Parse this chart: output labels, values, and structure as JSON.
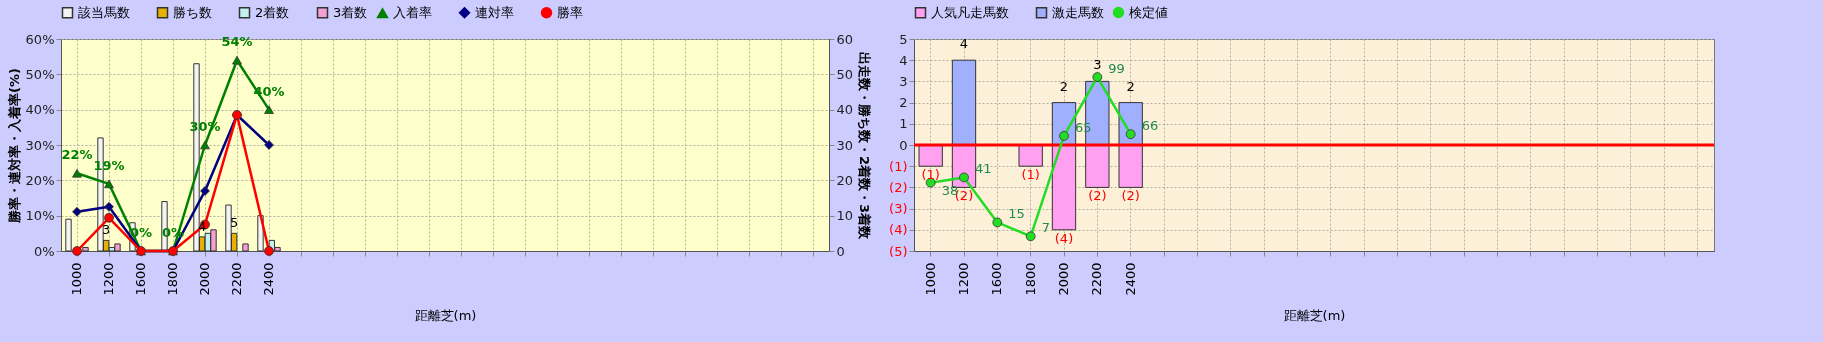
{
  "chart_data": [
    {
      "type": "bar",
      "categories": [
        "1000",
        "1200",
        "1600",
        "1800",
        "2000",
        "2200",
        "2400",
        null,
        null,
        null,
        null,
        null,
        null,
        null,
        null,
        null,
        null,
        null,
        null,
        null,
        null,
        null,
        null,
        null
      ],
      "xlabel": "距離芝(m)",
      "ylabel": "勝率・連対率・入着率(%)",
      "y2label": "出走数・勝ち数・2着数・3着数",
      "ylim": [
        0,
        60
      ],
      "yticks": [
        {
          "value": 0,
          "label": "0%"
        },
        {
          "value": 10,
          "label": "10%"
        },
        {
          "value": 20,
          "label": "20%"
        },
        {
          "value": 30,
          "label": "30%"
        },
        {
          "value": 40,
          "label": "40%"
        },
        {
          "value": 50,
          "label": "50%"
        },
        {
          "value": 60,
          "label": "60%"
        }
      ],
      "y2lim": [
        0,
        60
      ],
      "y2ticks": [
        0,
        10,
        20,
        30,
        40,
        50,
        60
      ],
      "grid": true,
      "legend": "top",
      "series": [
        {
          "name": "該当馬数",
          "color": "#f4f4f4",
          "axis": "y2",
          "values": [
            9,
            32,
            8,
            14,
            53,
            13,
            10,
            null,
            null,
            null,
            null,
            null,
            null,
            null,
            null,
            null,
            null,
            null,
            null,
            null,
            null,
            null,
            null,
            null
          ]
        },
        {
          "name": "勝ち数",
          "color": "#e8b000",
          "axis": "y2",
          "values": [
            0,
            3,
            0,
            0,
            4,
            5,
            0,
            null,
            null,
            null,
            null,
            null,
            null,
            null,
            null,
            null,
            null,
            null,
            null,
            null,
            null,
            null,
            null,
            null
          ],
          "value_labels": [
            null,
            "3",
            null,
            null,
            "4",
            "5",
            null,
            null,
            null,
            null,
            null,
            null,
            null,
            null,
            null,
            null,
            null,
            null,
            null,
            null,
            null,
            null,
            null,
            null
          ]
        },
        {
          "name": "2着数",
          "color": "#c4f0f0",
          "axis": "y2",
          "values": [
            0,
            1,
            0,
            0,
            5,
            0,
            3,
            null,
            null,
            null,
            null,
            null,
            null,
            null,
            null,
            null,
            null,
            null,
            null,
            null,
            null,
            null,
            null,
            null
          ]
        },
        {
          "name": "3着数",
          "color": "#f4a0d4",
          "axis": "y2",
          "values": [
            1,
            2,
            0,
            0,
            6,
            2,
            1,
            null,
            null,
            null,
            null,
            null,
            null,
            null,
            null,
            null,
            null,
            null,
            null,
            null,
            null,
            null,
            null,
            null
          ]
        },
        {
          "name": "入着率",
          "type": "line",
          "color": "#008000",
          "marker": "triangle",
          "values": [
            22,
            19,
            0,
            0,
            30,
            54,
            40,
            null,
            null,
            null,
            null,
            null,
            null,
            null,
            null,
            null,
            null,
            null,
            null,
            null,
            null,
            null,
            null,
            null
          ],
          "value_labels": [
            "22%",
            "19%",
            "0%",
            "0%",
            "30%",
            "54%",
            "40%",
            null,
            null,
            null,
            null,
            null,
            null,
            null,
            null,
            null,
            null,
            null,
            null,
            null,
            null,
            null,
            null,
            null
          ]
        },
        {
          "name": "連対率",
          "type": "line",
          "color": "#000080",
          "marker": "diamond",
          "values": [
            11.1,
            12.5,
            0,
            0,
            17,
            38.5,
            30,
            null,
            null,
            null,
            null,
            null,
            null,
            null,
            null,
            null,
            null,
            null,
            null,
            null,
            null,
            null,
            null,
            null
          ]
        },
        {
          "name": "勝率",
          "type": "line",
          "color": "#ff0000",
          "marker": "circle",
          "values": [
            0,
            9.4,
            0,
            0,
            7.5,
            38.5,
            0,
            null,
            null,
            null,
            null,
            null,
            null,
            null,
            null,
            null,
            null,
            null,
            null,
            null,
            null,
            null,
            null,
            null
          ]
        }
      ]
    },
    {
      "type": "bar",
      "stacked": true,
      "categories": [
        "1000",
        "1200",
        "1600",
        "1800",
        "2000",
        "2200",
        "2400",
        null,
        null,
        null,
        null,
        null,
        null,
        null,
        null,
        null,
        null,
        null,
        null,
        null,
        null,
        null,
        null,
        null
      ],
      "xlabel": "距離芝(m)",
      "ylim": [
        -5,
        5
      ],
      "yticks": [
        5,
        4,
        3,
        2,
        1,
        0,
        {
          "value": -1,
          "label": "(1)"
        },
        {
          "value": -2,
          "label": "(2)"
        },
        {
          "value": -3,
          "label": "(3)"
        },
        {
          "value": -4,
          "label": "(4)"
        },
        {
          "value": -5,
          "label": "(5)"
        }
      ],
      "y2lim": [
        -1.5,
        121
      ],
      "grid": true,
      "legend": "top",
      "ref_lines": [
        {
          "axis": "y",
          "value": 0,
          "color": "#ff0000"
        }
      ],
      "series": [
        {
          "name": "人気凡走馬数",
          "color": "#ffa0f0",
          "values": [
            -1,
            -2,
            null,
            -1,
            -4,
            -2,
            -2,
            null,
            null,
            null,
            null,
            null,
            null,
            null,
            null,
            null,
            null,
            null,
            null,
            null,
            null,
            null,
            null,
            null
          ],
          "value_labels": [
            "(1)",
            "(2)",
            null,
            "(1)",
            "(4)",
            "(2)",
            "(2)",
            null,
            null,
            null,
            null,
            null,
            null,
            null,
            null,
            null,
            null,
            null,
            null,
            null,
            null,
            null,
            null,
            null
          ]
        },
        {
          "name": "激走馬数",
          "color": "#a0b0ff",
          "values": [
            null,
            4,
            null,
            null,
            2,
            3,
            2,
            null,
            null,
            null,
            null,
            null,
            null,
            null,
            null,
            null,
            null,
            null,
            null,
            null,
            null,
            null,
            null,
            null
          ],
          "value_labels": [
            null,
            "4",
            null,
            null,
            "2",
            "3",
            "2",
            null,
            null,
            null,
            null,
            null,
            null,
            null,
            null,
            null,
            null,
            null,
            null,
            null,
            null,
            null,
            null,
            null
          ]
        },
        {
          "name": "検定値",
          "type": "line",
          "color": "#22dd22",
          "marker": "circle",
          "axis": "y2",
          "values": [
            38,
            41,
            15,
            7,
            65,
            99,
            66,
            null,
            null,
            null,
            null,
            null,
            null,
            null,
            null,
            null,
            null,
            null,
            null,
            null,
            null,
            null,
            null,
            null
          ],
          "value_labels": [
            "38",
            "41",
            "15",
            "7",
            "65",
            "99",
            "66",
            null,
            null,
            null,
            null,
            null,
            null,
            null,
            null,
            null,
            null,
            null,
            null,
            null,
            null,
            null,
            null,
            null
          ]
        }
      ]
    }
  ]
}
